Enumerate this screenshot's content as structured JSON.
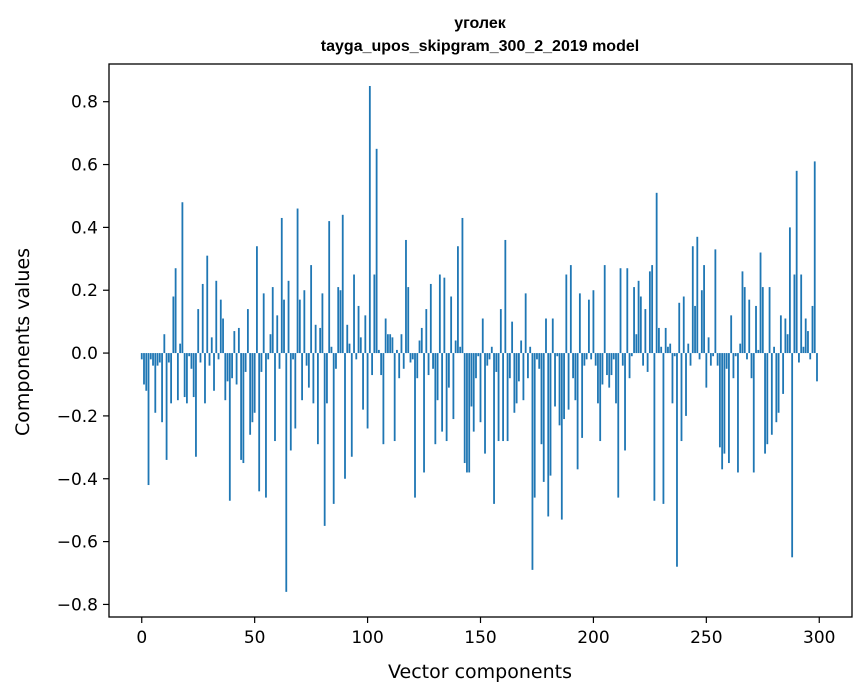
{
  "chart_data": {
    "type": "bar",
    "title": "уголек",
    "subtitle": "tayga_upos_skipgram_300_2_2019 model",
    "xlabel": "Vector components",
    "ylabel": "Components values",
    "xlim": [
      -14.5,
      314.5
    ],
    "ylim": [
      -0.84,
      0.92
    ],
    "xticks": [
      0,
      50,
      100,
      150,
      200,
      250,
      300
    ],
    "yticks": [
      -0.8,
      -0.6,
      -0.4,
      -0.2,
      0.0,
      0.2,
      0.4,
      0.6,
      0.8
    ],
    "xtick_labels": [
      "0",
      "50",
      "100",
      "150",
      "200",
      "250",
      "300"
    ],
    "ytick_labels": [
      "−0.8",
      "−0.6",
      "−0.4",
      "−0.2",
      "0.0",
      "0.2",
      "0.4",
      "0.6",
      "0.8"
    ],
    "bar_color": "#1f77b4",
    "grid": false,
    "x": [
      0,
      1,
      2,
      3,
      4,
      5,
      6,
      7,
      8,
      9,
      10,
      11,
      12,
      13,
      14,
      15,
      16,
      17,
      18,
      19,
      20,
      21,
      22,
      23,
      24,
      25,
      26,
      27,
      28,
      29,
      30,
      31,
      32,
      33,
      34,
      35,
      36,
      37,
      38,
      39,
      40,
      41,
      42,
      43,
      44,
      45,
      46,
      47,
      48,
      49,
      50,
      51,
      52,
      53,
      54,
      55,
      56,
      57,
      58,
      59,
      60,
      61,
      62,
      63,
      64,
      65,
      66,
      67,
      68,
      69,
      70,
      71,
      72,
      73,
      74,
      75,
      76,
      77,
      78,
      79,
      80,
      81,
      82,
      83,
      84,
      85,
      86,
      87,
      88,
      89,
      90,
      91,
      92,
      93,
      94,
      95,
      96,
      97,
      98,
      99,
      100,
      101,
      102,
      103,
      104,
      105,
      106,
      107,
      108,
      109,
      110,
      111,
      112,
      113,
      114,
      115,
      116,
      117,
      118,
      119,
      120,
      121,
      122,
      123,
      124,
      125,
      126,
      127,
      128,
      129,
      130,
      131,
      132,
      133,
      134,
      135,
      136,
      137,
      138,
      139,
      140,
      141,
      142,
      143,
      144,
      145,
      146,
      147,
      148,
      149,
      150,
      151,
      152,
      153,
      154,
      155,
      156,
      157,
      158,
      159,
      160,
      161,
      162,
      163,
      164,
      165,
      166,
      167,
      168,
      169,
      170,
      171,
      172,
      173,
      174,
      175,
      176,
      177,
      178,
      179,
      180,
      181,
      182,
      183,
      184,
      185,
      186,
      187,
      188,
      189,
      190,
      191,
      192,
      193,
      194,
      195,
      196,
      197,
      198,
      199,
      200,
      201,
      202,
      203,
      204,
      205,
      206,
      207,
      208,
      209,
      210,
      211,
      212,
      213,
      214,
      215,
      216,
      217,
      218,
      219,
      220,
      221,
      222,
      223,
      224,
      225,
      226,
      227,
      228,
      229,
      230,
      231,
      232,
      233,
      234,
      235,
      236,
      237,
      238,
      239,
      240,
      241,
      242,
      243,
      244,
      245,
      246,
      247,
      248,
      249,
      250,
      251,
      252,
      253,
      254,
      255,
      256,
      257,
      258,
      259,
      260,
      261,
      262,
      263,
      264,
      265,
      266,
      267,
      268,
      269,
      270,
      271,
      272,
      273,
      274,
      275,
      276,
      277,
      278,
      279,
      280,
      281,
      282,
      283,
      284,
      285,
      286,
      287,
      288,
      289,
      290,
      291,
      292,
      293,
      294,
      295,
      296,
      297,
      298,
      299
    ],
    "values": [
      -0.02,
      -0.1,
      -0.12,
      -0.42,
      -0.02,
      -0.04,
      -0.19,
      -0.04,
      -0.03,
      -0.22,
      0.06,
      -0.34,
      -0.03,
      -0.16,
      0.18,
      0.27,
      -0.15,
      0.03,
      0.48,
      -0.14,
      -0.16,
      -0.01,
      -0.05,
      -0.14,
      -0.33,
      0.14,
      -0.03,
      0.22,
      -0.16,
      0.31,
      -0.04,
      0.05,
      -0.12,
      0.23,
      -0.02,
      0.17,
      0.11,
      -0.15,
      -0.09,
      -0.47,
      -0.08,
      0.07,
      -0.1,
      0.08,
      -0.34,
      -0.35,
      -0.06,
      0.14,
      -0.26,
      -0.22,
      -0.19,
      0.34,
      -0.44,
      -0.06,
      0.19,
      -0.46,
      -0.02,
      0.06,
      0.21,
      -0.28,
      0.12,
      -0.05,
      0.43,
      0.17,
      -0.76,
      0.23,
      -0.31,
      -0.02,
      -0.24,
      0.46,
      0.17,
      -0.15,
      0.2,
      -0.04,
      -0.11,
      0.28,
      -0.16,
      0.09,
      -0.29,
      0.08,
      0.19,
      -0.55,
      -0.16,
      0.42,
      0.02,
      -0.48,
      -0.05,
      0.21,
      0.2,
      0.44,
      -0.4,
      0.09,
      0.03,
      -0.33,
      0.25,
      -0.02,
      0.15,
      0.05,
      -0.18,
      0.12,
      -0.24,
      0.85,
      -0.07,
      0.25,
      0.65,
      0.01,
      -0.07,
      -0.29,
      0.11,
      0.06,
      0.06,
      0.05,
      -0.28,
      0.01,
      -0.08,
      0.06,
      -0.05,
      0.36,
      0.21,
      -0.03,
      -0.02,
      -0.46,
      -0.08,
      0.04,
      0.08,
      -0.38,
      0.14,
      -0.07,
      0.22,
      -0.05,
      -0.29,
      -0.15,
      0.25,
      -0.25,
      0.24,
      -0.28,
      -0.11,
      0.18,
      -0.21,
      0.04,
      0.34,
      0.02,
      0.43,
      -0.35,
      -0.38,
      -0.38,
      -0.17,
      -0.25,
      -0.08,
      -0.01,
      -0.22,
      0.11,
      -0.32,
      -0.04,
      -0.02,
      0.02,
      -0.48,
      -0.06,
      -0.28,
      0.14,
      -0.28,
      0.36,
      -0.28,
      -0.08,
      0.1,
      -0.19,
      -0.16,
      -0.09,
      0.04,
      -0.15,
      0.19,
      -0.08,
      0.02,
      -0.69,
      -0.46,
      -0.02,
      -0.05,
      -0.29,
      -0.41,
      0.11,
      -0.52,
      -0.39,
      0.11,
      -0.17,
      -0.01,
      -0.23,
      -0.53,
      -0.21,
      0.25,
      -0.18,
      0.28,
      -0.08,
      -0.15,
      -0.37,
      0.19,
      -0.27,
      -0.04,
      -0.02,
      0.17,
      -0.02,
      0.2,
      -0.04,
      -0.16,
      -0.28,
      -0.1,
      0.28,
      -0.07,
      -0.11,
      -0.07,
      -0.02,
      -0.16,
      -0.46,
      0.27,
      -0.04,
      -0.31,
      0.27,
      -0.08,
      -0.01,
      0.21,
      0.06,
      0.23,
      0.18,
      -0.04,
      0.14,
      -0.06,
      0.26,
      0.28,
      -0.47,
      0.51,
      0.08,
      0.02,
      -0.48,
      0.08,
      0.02,
      0.03,
      -0.16,
      -0.01,
      -0.68,
      0.16,
      -0.28,
      0.18,
      -0.2,
      0.03,
      -0.04,
      0.34,
      0.15,
      0.37,
      -0.02,
      0.2,
      0.28,
      -0.11,
      0.05,
      -0.04,
      -0.01,
      0.33,
      -0.04,
      -0.3,
      -0.37,
      -0.32,
      -0.05,
      -0.35,
      0.12,
      -0.08,
      -0.01,
      -0.38,
      0.03,
      0.26,
      0.21,
      -0.02,
      0.17,
      -0.08,
      -0.38,
      0.15,
      0.01,
      0.32,
      0.21,
      -0.32,
      -0.29,
      0.21,
      -0.26,
      0.02,
      -0.22,
      -0.19,
      0.12,
      -0.13,
      0.11,
      0.06,
      0.4,
      -0.65,
      0.25,
      0.58,
      -0.03,
      0.25,
      0.02,
      0.11,
      0.07,
      -0.02,
      0.15,
      0.61,
      -0.09
    ]
  }
}
